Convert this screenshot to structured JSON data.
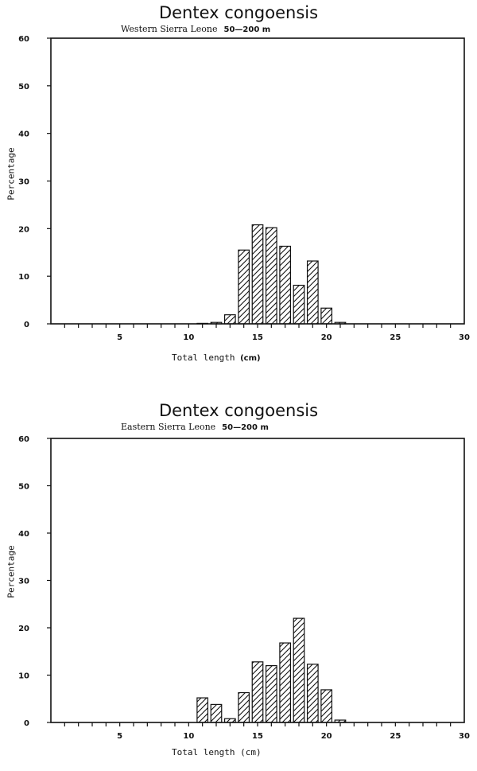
{
  "chart_data": [
    {
      "type": "bar",
      "title": "Dentex congoensis",
      "subtitle": "Western Sierra Leone",
      "depth": "50—200 m",
      "xlabel": "Total length",
      "xunit": "(cm)",
      "ylabel": "Percentage",
      "xlim": [
        0,
        30
      ],
      "ylim": [
        0,
        60
      ],
      "xticks": [
        5,
        10,
        15,
        20,
        25,
        30
      ],
      "yticks": [
        0,
        10,
        20,
        30,
        40,
        50,
        60
      ],
      "ytick_labels": [
        "0",
        "10",
        "20",
        "30",
        "40",
        "50",
        "60"
      ],
      "fill": "diagonal hatch",
      "grid": false,
      "x": [
        11,
        12,
        13,
        14,
        15,
        16,
        17,
        18,
        19,
        20,
        21
      ],
      "values": [
        0.1,
        0.3,
        1.9,
        15.5,
        20.8,
        20.2,
        16.3,
        8.1,
        13.2,
        3.3,
        0.3
      ]
    },
    {
      "type": "bar",
      "title": "Dentex congoensis",
      "subtitle": "Eastern Sierra Leone",
      "depth": "50—200 m",
      "xlabel": "Total length (cm)",
      "xunit": "",
      "ylabel": "Percentage",
      "xlim": [
        0,
        30
      ],
      "ylim": [
        0,
        60
      ],
      "xticks": [
        5,
        10,
        15,
        20,
        25,
        30
      ],
      "yticks": [
        0,
        10,
        20,
        30,
        40,
        50,
        60
      ],
      "ytick_labels": [
        "0",
        "10",
        "20",
        "30",
        "40",
        "50",
        "60"
      ],
      "fill": "diagonal hatch",
      "grid": false,
      "x": [
        11,
        12,
        13,
        14,
        15,
        16,
        17,
        18,
        19,
        20,
        21
      ],
      "values": [
        5.2,
        3.8,
        0.8,
        6.3,
        12.8,
        12.0,
        16.8,
        22.0,
        12.3,
        6.9,
        0.5
      ]
    }
  ]
}
